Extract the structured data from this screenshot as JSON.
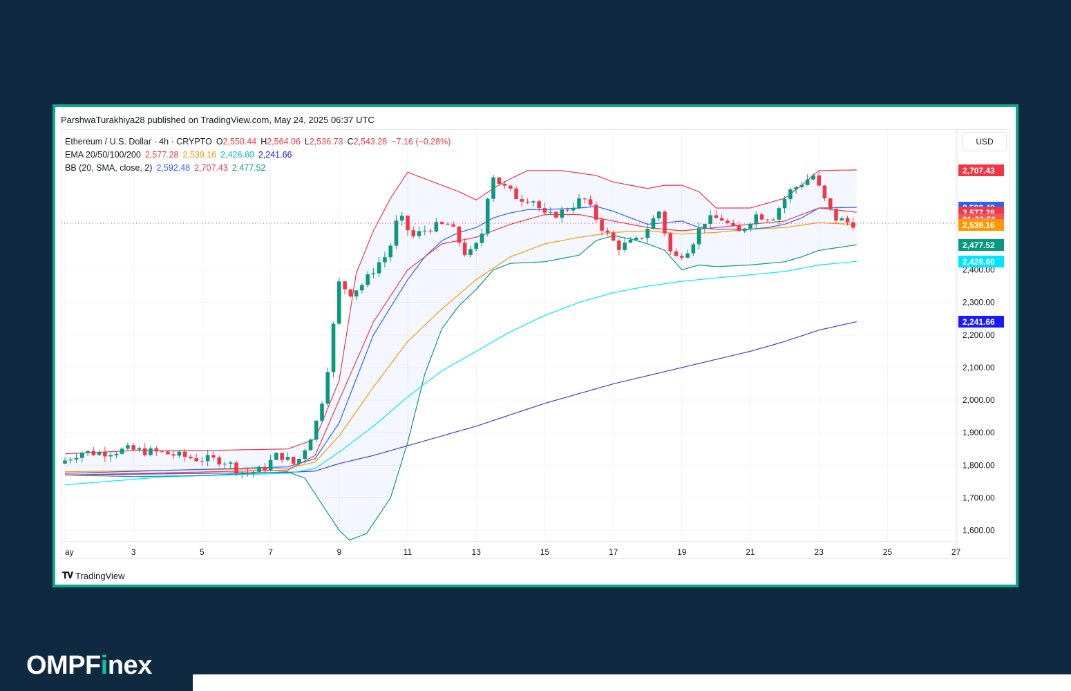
{
  "header": {
    "publisher": "ParshwaTurakhiya28 published on TradingView.com, May 24, 2025 06:37 UTC"
  },
  "legend": {
    "symbol": "Ethereum / U.S. Dollar · 4h · CRYPTO",
    "o_label": "O",
    "o": "2,550.44",
    "h_label": "H",
    "h": "2,564.06",
    "l_label": "L",
    "l": "2,536.73",
    "c_label": "C",
    "c": "2,543.28",
    "change": "−7.16 (−0.28%)",
    "ema_label": "EMA 20/50/100/200",
    "ema20": "2,577.28",
    "ema50": "2,539.16",
    "ema100": "2,426.60",
    "ema200": "2,241.66",
    "bb_label": "BB (20, SMA, close, 2)",
    "bb_basis": "2,592.48",
    "bb_upper": "2,707.43",
    "bb_lower": "2,477.52"
  },
  "currency": "USD",
  "countdown": "01:22:56",
  "footer_logo": "TradingView",
  "brand": {
    "part1": "OMPF",
    "dot": "i",
    "part2": "nex"
  },
  "colors": {
    "up": "#089981",
    "down": "#f23645",
    "ema20": "#f23645",
    "ema50": "#ff9800",
    "ema100": "#00e5ff",
    "ema200": "#3f3fdc",
    "bb_basis": "#2962ff",
    "bb_upper": "#f23645",
    "bb_lower": "#089981",
    "background": "#0f2a40",
    "frame": "#13a88b"
  },
  "chart_data": {
    "type": "candlestick",
    "ylim": [
      1565,
      2745
    ],
    "y_ticks": [
      {
        "value": 1600,
        "label": "1,600.00"
      },
      {
        "value": 1700,
        "label": "1,700.00"
      },
      {
        "value": 1800,
        "label": "1,800.00"
      },
      {
        "value": 1900,
        "label": "1,900.00"
      },
      {
        "value": 2000,
        "label": "2,000.00"
      },
      {
        "value": 2100,
        "label": "2,100.00"
      },
      {
        "value": 2200,
        "label": "2,200.00"
      },
      {
        "value": 2300,
        "label": "2,300.00"
      },
      {
        "value": 2400,
        "label": "2,400.00"
      }
    ],
    "x_ticks": [
      {
        "day": 1,
        "label": "ay"
      },
      {
        "day": 3,
        "label": "3"
      },
      {
        "day": 5,
        "label": "5"
      },
      {
        "day": 7,
        "label": "7"
      },
      {
        "day": 9,
        "label": "9"
      },
      {
        "day": 11,
        "label": "11"
      },
      {
        "day": 13,
        "label": "13"
      },
      {
        "day": 15,
        "label": "15"
      },
      {
        "day": 17,
        "label": "17"
      },
      {
        "day": 19,
        "label": "19"
      },
      {
        "day": 21,
        "label": "21"
      },
      {
        "day": 23,
        "label": "23"
      },
      {
        "day": 25,
        "label": "25"
      },
      {
        "day": 27,
        "label": "27"
      }
    ],
    "current_price": 2543.28,
    "price_tags": [
      {
        "value": 2707.43,
        "label": "2,707.43",
        "color": "#f23645"
      },
      {
        "value": 2592.48,
        "label": "2,592.48",
        "color": "#2962ff"
      },
      {
        "value": 2577.28,
        "label": "2,577.28",
        "color": "#f23645"
      },
      {
        "value": 2556.0,
        "label": "01:22:56",
        "color": "#f7525f"
      },
      {
        "value": 2539.16,
        "label": "2,539.16",
        "color": "#ff9800"
      },
      {
        "value": 2477.52,
        "label": "2,477.52",
        "color": "#089981"
      },
      {
        "value": 2426.6,
        "label": "2,426.60",
        "color": "#00e5ff"
      },
      {
        "value": 2241.66,
        "label": "2,241.66",
        "color": "#1a1aff"
      }
    ],
    "candle_keyframes": [
      [
        1.0,
        1805
      ],
      [
        1.6,
        1840
      ],
      [
        2.2,
        1838
      ],
      [
        3.0,
        1848
      ],
      [
        4.0,
        1838
      ],
      [
        5.0,
        1820
      ],
      [
        5.8,
        1815
      ],
      [
        6.4,
        1775
      ],
      [
        6.9,
        1785
      ],
      [
        7.4,
        1835
      ],
      [
        7.9,
        1800
      ],
      [
        8.3,
        1880
      ],
      [
        8.6,
        1960
      ],
      [
        8.9,
        2140
      ],
      [
        9.15,
        2360
      ],
      [
        9.5,
        2330
      ],
      [
        9.9,
        2360
      ],
      [
        10.3,
        2420
      ],
      [
        10.6,
        2450
      ],
      [
        10.9,
        2570
      ],
      [
        11.3,
        2500
      ],
      [
        11.8,
        2530
      ],
      [
        12.4,
        2540
      ],
      [
        12.9,
        2440
      ],
      [
        13.3,
        2490
      ],
      [
        13.6,
        2700
      ],
      [
        13.9,
        2660
      ],
      [
        14.4,
        2620
      ],
      [
        14.8,
        2620
      ],
      [
        15.2,
        2560
      ],
      [
        15.7,
        2580
      ],
      [
        16.3,
        2620
      ],
      [
        16.9,
        2520
      ],
      [
        17.3,
        2470
      ],
      [
        17.9,
        2490
      ],
      [
        18.5,
        2580
      ],
      [
        18.9,
        2430
      ],
      [
        19.4,
        2470
      ],
      [
        19.8,
        2550
      ],
      [
        20.3,
        2560
      ],
      [
        20.8,
        2510
      ],
      [
        21.3,
        2570
      ],
      [
        21.8,
        2560
      ],
      [
        22.3,
        2640
      ],
      [
        22.7,
        2670
      ],
      [
        23.0,
        2690
      ],
      [
        23.3,
        2620
      ],
      [
        23.6,
        2560
      ],
      [
        24.1,
        2543
      ]
    ],
    "ema20": [
      [
        1.0,
        1770
      ],
      [
        7.5,
        1785
      ],
      [
        8.3,
        1830
      ],
      [
        9.0,
        2000
      ],
      [
        10.0,
        2240
      ],
      [
        11.0,
        2400
      ],
      [
        12.0,
        2480
      ],
      [
        13.0,
        2500
      ],
      [
        14.0,
        2540
      ],
      [
        15.0,
        2570
      ],
      [
        16.0,
        2570
      ],
      [
        17.0,
        2550
      ],
      [
        18.0,
        2530
      ],
      [
        19.0,
        2520
      ],
      [
        20.0,
        2530
      ],
      [
        21.0,
        2540
      ],
      [
        22.0,
        2550
      ],
      [
        23.0,
        2590
      ],
      [
        24.1,
        2577
      ]
    ],
    "ema50": [
      [
        1.0,
        1780
      ],
      [
        7.5,
        1790
      ],
      [
        8.3,
        1810
      ],
      [
        9.0,
        1890
      ],
      [
        10.0,
        2040
      ],
      [
        11.0,
        2180
      ],
      [
        12.0,
        2280
      ],
      [
        13.0,
        2370
      ],
      [
        14.0,
        2440
      ],
      [
        15.0,
        2480
      ],
      [
        16.0,
        2500
      ],
      [
        17.0,
        2515
      ],
      [
        18.0,
        2520
      ],
      [
        19.0,
        2510
      ],
      [
        20.0,
        2515
      ],
      [
        21.0,
        2525
      ],
      [
        22.0,
        2530
      ],
      [
        23.0,
        2545
      ],
      [
        24.1,
        2539
      ]
    ],
    "ema100": [
      [
        1.0,
        1740
      ],
      [
        4.0,
        1765
      ],
      [
        7.5,
        1775
      ],
      [
        8.3,
        1790
      ],
      [
        9.0,
        1840
      ],
      [
        10.0,
        1920
      ],
      [
        11.0,
        2010
      ],
      [
        12.0,
        2090
      ],
      [
        13.0,
        2150
      ],
      [
        14.0,
        2210
      ],
      [
        15.0,
        2260
      ],
      [
        16.0,
        2300
      ],
      [
        17.0,
        2330
      ],
      [
        18.0,
        2350
      ],
      [
        19.0,
        2365
      ],
      [
        20.0,
        2375
      ],
      [
        21.0,
        2385
      ],
      [
        22.0,
        2395
      ],
      [
        23.0,
        2415
      ],
      [
        24.1,
        2426
      ]
    ],
    "ema200": [
      [
        1.0,
        1770
      ],
      [
        5.0,
        1775
      ],
      [
        7.5,
        1778
      ],
      [
        8.3,
        1782
      ],
      [
        9.0,
        1805
      ],
      [
        10.0,
        1830
      ],
      [
        11.0,
        1860
      ],
      [
        12.0,
        1890
      ],
      [
        13.0,
        1920
      ],
      [
        14.0,
        1955
      ],
      [
        15.0,
        1990
      ],
      [
        16.0,
        2020
      ],
      [
        17.0,
        2050
      ],
      [
        18.0,
        2075
      ],
      [
        19.0,
        2100
      ],
      [
        20.0,
        2125
      ],
      [
        21.0,
        2150
      ],
      [
        22.0,
        2180
      ],
      [
        23.0,
        2215
      ],
      [
        24.1,
        2241
      ]
    ],
    "bb_upper": [
      [
        1.0,
        1835
      ],
      [
        3.0,
        1845
      ],
      [
        5.0,
        1845
      ],
      [
        7.5,
        1850
      ],
      [
        8.3,
        1880
      ],
      [
        9.0,
        2060
      ],
      [
        9.5,
        2390
      ],
      [
        10.0,
        2520
      ],
      [
        10.5,
        2620
      ],
      [
        11.0,
        2700
      ],
      [
        11.5,
        2680
      ],
      [
        12.0,
        2660
      ],
      [
        12.5,
        2640
      ],
      [
        13.0,
        2615
      ],
      [
        13.5,
        2650
      ],
      [
        14.0,
        2680
      ],
      [
        14.5,
        2705
      ],
      [
        15.5,
        2705
      ],
      [
        16.5,
        2690
      ],
      [
        17.0,
        2670
      ],
      [
        18.0,
        2650
      ],
      [
        18.5,
        2660
      ],
      [
        19.0,
        2660
      ],
      [
        19.5,
        2640
      ],
      [
        20.0,
        2590
      ],
      [
        21.0,
        2590
      ],
      [
        22.0,
        2620
      ],
      [
        22.5,
        2660
      ],
      [
        23.0,
        2705
      ],
      [
        24.1,
        2707
      ]
    ],
    "bb_basis": [
      [
        1.0,
        1775
      ],
      [
        7.5,
        1795
      ],
      [
        8.3,
        1820
      ],
      [
        9.0,
        1930
      ],
      [
        10.0,
        2200
      ],
      [
        11.0,
        2370
      ],
      [
        11.5,
        2440
      ],
      [
        12.0,
        2490
      ],
      [
        12.5,
        2515
      ],
      [
        13.0,
        2530
      ],
      [
        13.5,
        2560
      ],
      [
        14.0,
        2575
      ],
      [
        14.5,
        2585
      ],
      [
        15.0,
        2585
      ],
      [
        16.0,
        2590
      ],
      [
        16.5,
        2595
      ],
      [
        17.0,
        2580
      ],
      [
        17.5,
        2560
      ],
      [
        18.0,
        2540
      ],
      [
        18.5,
        2545
      ],
      [
        19.0,
        2550
      ],
      [
        19.5,
        2530
      ],
      [
        20.0,
        2525
      ],
      [
        21.0,
        2525
      ],
      [
        21.5,
        2530
      ],
      [
        22.0,
        2540
      ],
      [
        22.5,
        2560
      ],
      [
        23.0,
        2590
      ],
      [
        24.1,
        2592
      ]
    ],
    "bb_lower": [
      [
        1.0,
        1770
      ],
      [
        3.0,
        1765
      ],
      [
        5.0,
        1768
      ],
      [
        7.5,
        1780
      ],
      [
        8.0,
        1760
      ],
      [
        8.5,
        1680
      ],
      [
        9.0,
        1600
      ],
      [
        9.3,
        1570
      ],
      [
        9.8,
        1590
      ],
      [
        10.5,
        1700
      ],
      [
        11.0,
        1870
      ],
      [
        11.5,
        2080
      ],
      [
        12.0,
        2220
      ],
      [
        12.5,
        2290
      ],
      [
        13.0,
        2340
      ],
      [
        13.5,
        2400
      ],
      [
        14.0,
        2420
      ],
      [
        15.0,
        2425
      ],
      [
        16.0,
        2445
      ],
      [
        16.5,
        2490
      ],
      [
        17.0,
        2505
      ],
      [
        17.5,
        2495
      ],
      [
        18.0,
        2480
      ],
      [
        18.5,
        2460
      ],
      [
        19.0,
        2400
      ],
      [
        19.5,
        2415
      ],
      [
        20.0,
        2410
      ],
      [
        21.0,
        2415
      ],
      [
        22.0,
        2425
      ],
      [
        22.5,
        2440
      ],
      [
        23.0,
        2460
      ],
      [
        24.1,
        2477
      ]
    ]
  }
}
